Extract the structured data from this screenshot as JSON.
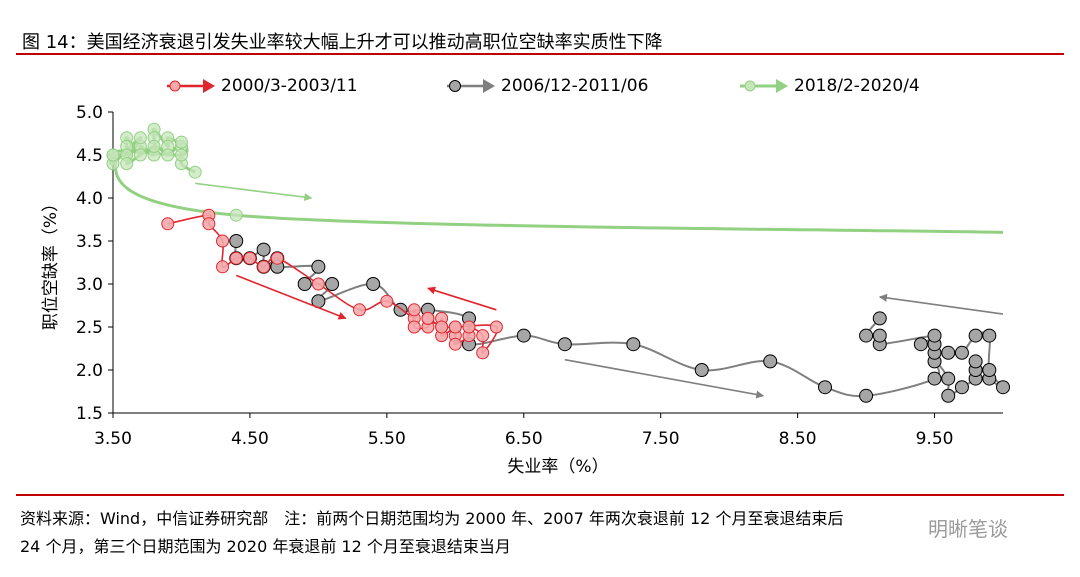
{
  "figure": {
    "title": "图 14：美国经济衰退引发失业率较大幅上升才可以推动高职位空缺率实质性下降"
  },
  "source": {
    "line1": "资料来源：Wind，中信证券研究部　注：前两个日期范围均为 2000 年、2007 年两次衰退前 12 个月至衰退结束后",
    "line2": "24 个月，第三个日期范围为 2020 年衰退前 12 个月至衰退结束当月"
  },
  "watermark": "明晰笔谈",
  "colors": {
    "s1": "#e0262f",
    "s1_fill": "#f4a9ab",
    "s2": "#7f7f7f",
    "s2_fill": "#a6a6a6",
    "s3": "#92d082",
    "s3_fill": "#c5e6bb",
    "rule": "#c00000"
  },
  "chart_data": {
    "type": "scatter",
    "xlabel": "失业率（%）",
    "ylabel": "职位空缺率（%）",
    "xlim": [
      3.5,
      10.0
    ],
    "ylim": [
      1.5,
      5.0
    ],
    "x_ticks": [
      "3.50",
      "4.50",
      "5.50",
      "6.50",
      "7.50",
      "8.50",
      "9.50"
    ],
    "y_ticks": [
      "1.5",
      "2.0",
      "2.5",
      "3.0",
      "3.5",
      "4.0",
      "4.5",
      "5.0"
    ],
    "grid": false,
    "legend_position": "top",
    "series": [
      {
        "name": "2000/3-2003/11",
        "points": [
          [
            3.9,
            3.7
          ],
          [
            4.2,
            3.8
          ],
          [
            4.2,
            3.7
          ],
          [
            4.3,
            3.5
          ],
          [
            4.3,
            3.2
          ],
          [
            4.4,
            3.3
          ],
          [
            4.5,
            3.3
          ],
          [
            4.6,
            3.2
          ],
          [
            4.7,
            3.3
          ],
          [
            5.0,
            3.0
          ],
          [
            5.3,
            2.7
          ],
          [
            5.5,
            2.8
          ],
          [
            5.7,
            2.6
          ],
          [
            5.7,
            2.7
          ],
          [
            5.7,
            2.5
          ],
          [
            5.8,
            2.5
          ],
          [
            5.8,
            2.6
          ],
          [
            5.9,
            2.5
          ],
          [
            5.9,
            2.6
          ],
          [
            5.9,
            2.4
          ],
          [
            6.0,
            2.5
          ],
          [
            6.0,
            2.4
          ],
          [
            6.0,
            2.3
          ],
          [
            6.1,
            2.4
          ],
          [
            6.1,
            2.5
          ],
          [
            6.2,
            2.4
          ],
          [
            6.2,
            2.2
          ],
          [
            6.3,
            2.5
          ],
          [
            6.0,
            2.5
          ],
          [
            5.9,
            2.5
          ],
          [
            5.8,
            2.6
          ]
        ],
        "trend_arrows": [
          {
            "from": [
              4.4,
              3.1
            ],
            "to": [
              5.2,
              2.6
            ]
          },
          {
            "from": [
              6.3,
              2.7
            ],
            "to": [
              5.8,
              2.95
            ]
          }
        ]
      },
      {
        "name": "2006/12-2011/06",
        "points": [
          [
            4.4,
            3.5
          ],
          [
            4.4,
            3.3
          ],
          [
            4.5,
            3.3
          ],
          [
            4.6,
            3.4
          ],
          [
            4.6,
            3.2
          ],
          [
            4.7,
            3.3
          ],
          [
            4.7,
            3.2
          ],
          [
            5.0,
            3.2
          ],
          [
            4.9,
            3.0
          ],
          [
            5.1,
            3.0
          ],
          [
            5.0,
            2.8
          ],
          [
            5.4,
            3.0
          ],
          [
            5.6,
            2.7
          ],
          [
            5.8,
            2.7
          ],
          [
            6.1,
            2.6
          ],
          [
            6.1,
            2.3
          ],
          [
            6.5,
            2.4
          ],
          [
            6.8,
            2.3
          ],
          [
            7.3,
            2.3
          ],
          [
            7.8,
            2.0
          ],
          [
            8.3,
            2.1
          ],
          [
            8.7,
            1.8
          ],
          [
            9.0,
            1.7
          ],
          [
            9.5,
            1.9
          ],
          [
            9.5,
            2.1
          ],
          [
            9.6,
            1.9
          ],
          [
            9.6,
            1.7
          ],
          [
            9.7,
            1.8
          ],
          [
            9.8,
            1.9
          ],
          [
            9.8,
            2.0
          ],
          [
            9.8,
            2.1
          ],
          [
            9.9,
            1.9
          ],
          [
            10.0,
            1.8
          ],
          [
            9.9,
            2.0
          ],
          [
            9.9,
            2.4
          ],
          [
            9.8,
            2.4
          ],
          [
            9.7,
            2.2
          ],
          [
            9.6,
            2.2
          ],
          [
            9.5,
            2.2
          ],
          [
            9.5,
            2.3
          ],
          [
            9.4,
            2.3
          ],
          [
            9.5,
            2.4
          ],
          [
            9.1,
            2.3
          ],
          [
            9.1,
            2.4
          ],
          [
            9.0,
            2.4
          ],
          [
            9.1,
            2.6
          ]
        ],
        "trend_arrows": [
          {
            "from": [
              6.8,
              2.12
            ],
            "to": [
              8.25,
              1.7
            ]
          },
          {
            "from": [
              10.0,
              2.65
            ],
            "to": [
              9.1,
              2.85
            ]
          }
        ]
      },
      {
        "name": "2018/2-2020/4",
        "points": [
          [
            4.1,
            4.3
          ],
          [
            4.0,
            4.4
          ],
          [
            4.0,
            4.6
          ],
          [
            3.9,
            4.7
          ],
          [
            3.9,
            4.6
          ],
          [
            3.8,
            4.8
          ],
          [
            3.8,
            4.7
          ],
          [
            3.8,
            4.5
          ],
          [
            3.7,
            4.6
          ],
          [
            3.7,
            4.5
          ],
          [
            3.6,
            4.7
          ],
          [
            3.6,
            4.6
          ],
          [
            3.6,
            4.5
          ],
          [
            3.5,
            4.5
          ],
          [
            3.5,
            4.4
          ],
          [
            3.7,
            4.7
          ],
          [
            3.6,
            4.4
          ],
          [
            3.8,
            4.6
          ],
          [
            3.9,
            4.5
          ],
          [
            4.0,
            4.65
          ],
          [
            4.0,
            4.5
          ],
          [
            3.5,
            4.5
          ],
          [
            4.4,
            3.8
          ],
          [
            10.0,
            3.6
          ]
        ],
        "trend_arrows": [
          {
            "from": [
              4.1,
              4.17
            ],
            "to": [
              4.95,
              4.0
            ]
          }
        ]
      }
    ]
  }
}
